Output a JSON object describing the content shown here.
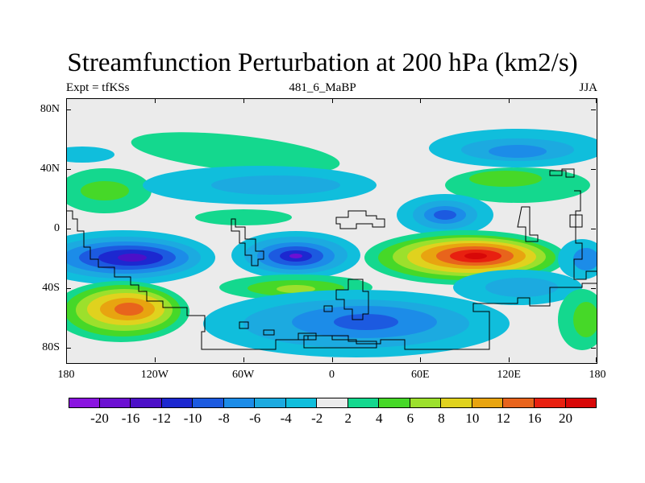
{
  "title": "Streamfunction Perturbation at 200 hPa (km2/s)",
  "subtitle_left": "Expt = tfKSs",
  "subtitle_center": "481_6_MaBP",
  "subtitle_right": "JJA",
  "axes": {
    "y_ticks": [
      {
        "label": "80N",
        "lat": 80
      },
      {
        "label": "40N",
        "lat": 40
      },
      {
        "label": "0",
        "lat": 0
      },
      {
        "label": "40S",
        "lat": -40
      },
      {
        "label": "80S",
        "lat": -80
      }
    ],
    "x_ticks": [
      {
        "label": "180",
        "lon": -180
      },
      {
        "label": "120W",
        "lon": -120
      },
      {
        "label": "60W",
        "lon": -60
      },
      {
        "label": "0",
        "lon": 0
      },
      {
        "label": "60E",
        "lon": 60
      },
      {
        "label": "120E",
        "lon": 120
      },
      {
        "label": "180",
        "lon": 180
      }
    ]
  },
  "colorbar": {
    "labels": [
      "-20",
      "-16",
      "-12",
      "-10",
      "-8",
      "-6",
      "-4",
      "-2",
      "2",
      "4",
      "6",
      "8",
      "10",
      "12",
      "16",
      "20"
    ],
    "colors": [
      "#8a14e0",
      "#6c10d2",
      "#4c10c8",
      "#1c28d0",
      "#1c5ae0",
      "#1c8ce8",
      "#1caae0",
      "#10bedc",
      "#ebebeb",
      "#14d88e",
      "#46d828",
      "#9ce02c",
      "#e0d21e",
      "#e8a410",
      "#e8641c",
      "#e82010",
      "#d80808"
    ]
  }
}
